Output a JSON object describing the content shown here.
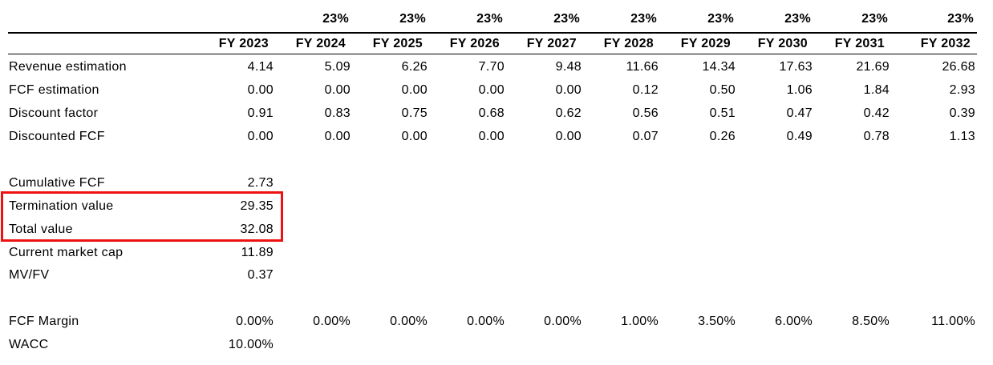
{
  "table": {
    "growth_row": [
      "",
      "23%",
      "23%",
      "23%",
      "23%",
      "23%",
      "23%",
      "23%",
      "23%",
      "23%"
    ],
    "year_row": [
      "FY 2023",
      "FY 2024",
      "FY 2025",
      "FY 2026",
      "FY 2027",
      "FY 2028",
      "FY 2029",
      "FY 2030",
      "FY 2031",
      "FY 2032"
    ],
    "rows": [
      {
        "label": "Revenue estimation",
        "values": [
          "4.14",
          "5.09",
          "6.26",
          "7.70",
          "9.48",
          "11.66",
          "14.34",
          "17.63",
          "21.69",
          "26.68"
        ]
      },
      {
        "label": "FCF estimation",
        "values": [
          "0.00",
          "0.00",
          "0.00",
          "0.00",
          "0.00",
          "0.12",
          "0.50",
          "1.06",
          "1.84",
          "2.93"
        ]
      },
      {
        "label": "Discount factor",
        "values": [
          "0.91",
          "0.83",
          "0.75",
          "0.68",
          "0.62",
          "0.56",
          "0.51",
          "0.47",
          "0.42",
          "0.39"
        ]
      },
      {
        "label": "Discounted FCF",
        "values": [
          "0.00",
          "0.00",
          "0.00",
          "0.00",
          "0.00",
          "0.07",
          "0.26",
          "0.49",
          "0.78",
          "1.13"
        ]
      },
      {
        "label": "",
        "values": [
          "",
          "",
          "",
          "",
          "",
          "",
          "",
          "",
          "",
          ""
        ]
      },
      {
        "label": "Cumulative FCF",
        "values": [
          "2.73",
          "",
          "",
          "",
          "",
          "",
          "",
          "",
          "",
          ""
        ]
      },
      {
        "label": "Termination value",
        "values": [
          "29.35",
          "",
          "",
          "",
          "",
          "",
          "",
          "",
          "",
          ""
        ]
      },
      {
        "label": "Total value",
        "values": [
          "32.08",
          "",
          "",
          "",
          "",
          "",
          "",
          "",
          "",
          ""
        ]
      },
      {
        "label": "Current market cap",
        "values": [
          "11.89",
          "",
          "",
          "",
          "",
          "",
          "",
          "",
          "",
          ""
        ]
      },
      {
        "label": "MV/FV",
        "values": [
          "0.37",
          "",
          "",
          "",
          "",
          "",
          "",
          "",
          "",
          ""
        ]
      },
      {
        "label": "",
        "values": [
          "",
          "",
          "",
          "",
          "",
          "",
          "",
          "",
          "",
          ""
        ]
      },
      {
        "label": "FCF Margin",
        "values": [
          "0.00%",
          "0.00%",
          "0.00%",
          "0.00%",
          "0.00%",
          "1.00%",
          "3.50%",
          "6.00%",
          "8.50%",
          "11.00%"
        ]
      },
      {
        "label": "WACC",
        "values": [
          "10.00%",
          "",
          "",
          "",
          "",
          "",
          "",
          "",
          "",
          ""
        ]
      }
    ]
  },
  "highlight_box": {
    "border_color": "#ee1111",
    "rows_covered": [
      "Termination value",
      "Total value"
    ]
  },
  "colors": {
    "text": "#000000",
    "rule": "#000000",
    "background": "#ffffff"
  }
}
